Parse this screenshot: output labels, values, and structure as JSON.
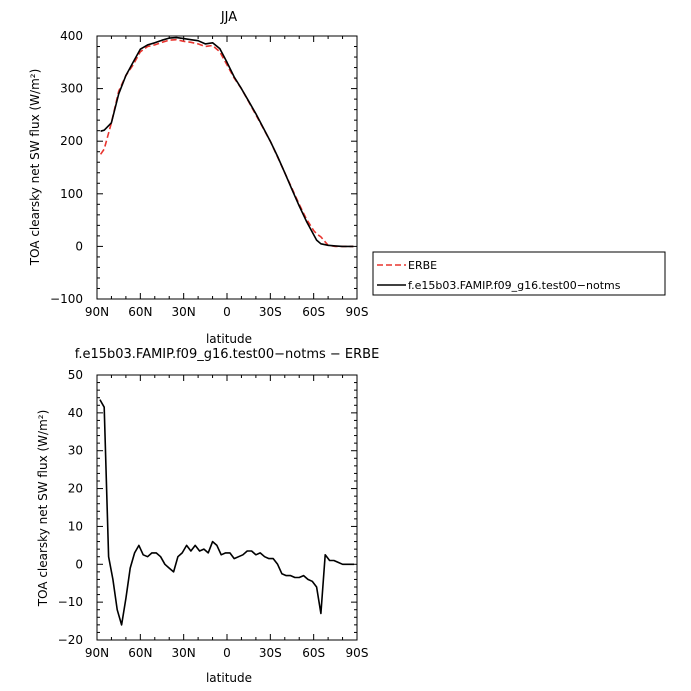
{
  "chart_data": [
    {
      "type": "line",
      "title": "JJA",
      "xlabel": "latitude",
      "ylabel": "TOA clearsky net SW flux (W/m²)",
      "xlim": [
        90,
        -90
      ],
      "ylim": [
        -100,
        400
      ],
      "xticks": [
        "90N",
        "60N",
        "30N",
        "0",
        "30S",
        "60S",
        "90S"
      ],
      "yticks": [
        "−100",
        "0",
        "100",
        "200",
        "300",
        "400"
      ],
      "legend_position": "outside-right",
      "series": [
        {
          "name": "ERBE",
          "color": "#e8352f",
          "dash": "dashed",
          "x": [
            87.5,
            85,
            80,
            75,
            70,
            65,
            60,
            55,
            50,
            45,
            40,
            35,
            30,
            25,
            20,
            15,
            10,
            5,
            0,
            -5,
            -10,
            -15,
            -20,
            -25,
            -30,
            -35,
            -40,
            -45,
            -50,
            -55,
            -60,
            -62,
            -65,
            -70,
            -75,
            -80,
            -85,
            -87.5
          ],
          "y": [
            175,
            185,
            235,
            295,
            325,
            345,
            370,
            380,
            383,
            388,
            392,
            393,
            390,
            388,
            385,
            380,
            382,
            370,
            345,
            320,
            300,
            275,
            250,
            225,
            200,
            170,
            140,
            110,
            80,
            52,
            30,
            24,
            18,
            2,
            0,
            0,
            0,
            0
          ]
        },
        {
          "name": "f.e15b03.FAMIP.f09_g16.test00−notms",
          "color": "#000000",
          "dash": "solid",
          "x": [
            87.5,
            85,
            80,
            75,
            70,
            65,
            60,
            55,
            50,
            45,
            40,
            35,
            30,
            25,
            20,
            15,
            10,
            5,
            0,
            -5,
            -10,
            -15,
            -20,
            -25,
            -30,
            -35,
            -40,
            -45,
            -50,
            -55,
            -60,
            -62,
            -65,
            -70,
            -75,
            -80,
            -85,
            -87.5
          ],
          "y": [
            219,
            221,
            235,
            290,
            325,
            350,
            375,
            383,
            387,
            392,
            396,
            397,
            395,
            393,
            391,
            385,
            387,
            376,
            350,
            322,
            300,
            276,
            252,
            226,
            200,
            171,
            140,
            108,
            77,
            48,
            22,
            12,
            5,
            2,
            1,
            0,
            0,
            0
          ]
        }
      ]
    },
    {
      "type": "line",
      "title": "f.e15b03.FAMIP.f09_g16.test00−notms − ERBE",
      "xlabel": "latitude",
      "ylabel": "TOA clearsky net SW flux (W/m²)",
      "xlim": [
        90,
        -90
      ],
      "ylim": [
        -20,
        50
      ],
      "xticks": [
        "90N",
        "60N",
        "30N",
        "0",
        "30S",
        "60S",
        "90S"
      ],
      "yticks": [
        "−20",
        "−10",
        "0",
        "10",
        "20",
        "30",
        "40",
        "50"
      ],
      "series": [
        {
          "color": "#000000",
          "dash": "solid",
          "x": [
            88,
            85,
            82,
            79,
            76,
            73,
            70,
            67,
            64,
            61,
            58,
            55,
            52,
            49,
            46,
            43,
            40,
            37,
            34,
            31,
            28,
            25,
            22,
            19,
            16,
            13,
            10,
            7,
            4,
            1,
            -2,
            -5,
            -8,
            -11,
            -14,
            -17,
            -20,
            -23,
            -26,
            -29,
            -32,
            -35,
            -38,
            -41,
            -44,
            -47,
            -50,
            -53,
            -56,
            -59,
            -62,
            -65,
            -68,
            -71,
            -74,
            -77,
            -80,
            -83,
            -86,
            -88
          ],
          "y": [
            43.5,
            41.5,
            2,
            -4,
            -12,
            -16,
            -9,
            -1,
            3,
            5,
            2.5,
            2,
            3,
            3,
            2,
            0,
            -1,
            -2,
            2,
            3,
            5,
            3.5,
            5,
            3.5,
            4,
            3,
            6,
            5,
            2.5,
            3,
            3,
            1.5,
            2,
            2.5,
            3.5,
            3.5,
            2.5,
            3,
            2,
            1.5,
            1.5,
            0,
            -2.5,
            -3,
            -3,
            -3.5,
            -3.5,
            -3,
            -4,
            -4.5,
            -6,
            -13,
            2.5,
            1,
            1,
            0.5,
            0,
            0,
            0,
            0
          ]
        }
      ]
    }
  ]
}
